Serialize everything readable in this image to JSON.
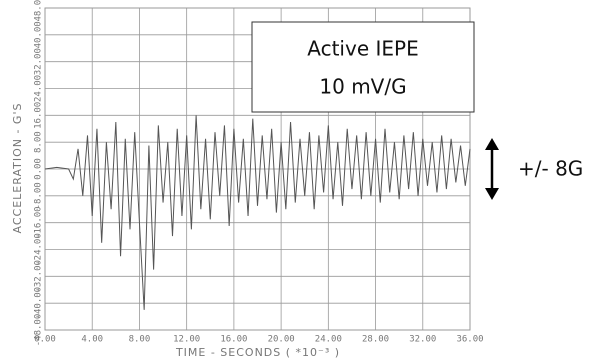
{
  "chart_data": {
    "type": "line",
    "ylabel": "ACCELERATION - G'S",
    "xlabel": "TIME - SECONDS ( *10⁻³ )",
    "annotations": [
      "Active IEPE",
      "10 mV/G",
      "+/- 8G"
    ],
    "color": "#555555",
    "grid": true,
    "xlim": [
      0,
      36
    ],
    "ylim": [
      -48,
      48
    ],
    "xticks": [
      {
        "value": 0,
        "label": "0.00"
      },
      {
        "value": 4,
        "label": "4.00"
      },
      {
        "value": 8,
        "label": "8.00"
      },
      {
        "value": 12,
        "label": "12.00"
      },
      {
        "value": 16,
        "label": "16.00"
      },
      {
        "value": 20,
        "label": "20.00"
      },
      {
        "value": 24,
        "label": "24.00"
      },
      {
        "value": 28,
        "label": "28.00"
      },
      {
        "value": 32,
        "label": "32.00"
      },
      {
        "value": 36,
        "label": "36.00"
      }
    ],
    "yticks": [
      {
        "value": -48,
        "label": "-48.00"
      },
      {
        "value": -40,
        "label": "-40.00"
      },
      {
        "value": -32,
        "label": "-32.00"
      },
      {
        "value": -24,
        "label": "-24.00"
      },
      {
        "value": -16,
        "label": "-16.00"
      },
      {
        "value": -8,
        "label": "-8.00"
      },
      {
        "value": 0,
        "label": "0.00"
      },
      {
        "value": 8,
        "label": "8.00"
      },
      {
        "value": 16,
        "label": "16.00"
      },
      {
        "value": 24,
        "label": "24.00"
      },
      {
        "value": 32,
        "label": "32.00"
      },
      {
        "value": 40,
        "label": "40.00"
      },
      {
        "value": 48,
        "label": "48.00"
      }
    ],
    "x": [
      0,
      1,
      2,
      2.4,
      2.8,
      3.2,
      3.6,
      4,
      4.4,
      4.8,
      5.2,
      5.6,
      6,
      6.4,
      6.8,
      7.2,
      7.6,
      8,
      8.4,
      8.8,
      9.2,
      9.6,
      10,
      10.4,
      10.8,
      11.2,
      11.6,
      12,
      12.4,
      12.8,
      13.2,
      13.6,
      14,
      14.4,
      14.8,
      15.2,
      15.6,
      16,
      16.4,
      16.8,
      17.2,
      17.6,
      18,
      18.4,
      18.8,
      19.2,
      19.6,
      20,
      20.4,
      20.8,
      21.2,
      21.6,
      22,
      22.4,
      22.8,
      23.2,
      23.6,
      24,
      24.4,
      24.8,
      25.2,
      25.6,
      26,
      26.4,
      26.8,
      27.2,
      27.6,
      28,
      28.4,
      28.8,
      29.2,
      29.6,
      30,
      30.4,
      30.8,
      31.2,
      31.6,
      32,
      32.4,
      32.8,
      33.2,
      33.6,
      34,
      34.4,
      34.8,
      35.2,
      35.6,
      36
    ],
    "series": [
      {
        "name": "Acceleration",
        "color": "#555555",
        "values": [
          0,
          0.5,
          0,
          -3,
          6,
          -8,
          10,
          -14,
          12,
          -22,
          8,
          -12,
          14,
          -26,
          9,
          -18,
          11,
          -16,
          -42,
          7,
          -30,
          13,
          -10,
          8,
          -20,
          12,
          -14,
          10,
          -18,
          16,
          -12,
          9,
          -15,
          11,
          -8,
          13,
          -17,
          12,
          -10,
          9,
          -14,
          15,
          -11,
          10,
          -9,
          12,
          -13,
          8,
          -12,
          14,
          -10,
          9,
          -8,
          11,
          -12,
          10,
          -7,
          13,
          -9,
          8,
          -11,
          12,
          -6,
          10,
          -9,
          11,
          -8,
          9,
          -10,
          12,
          -7,
          8,
          -9,
          10,
          -6,
          11,
          -8,
          9,
          -5,
          8,
          -7,
          10,
          -6,
          9,
          -4,
          7,
          -5,
          6
        ]
      }
    ]
  }
}
